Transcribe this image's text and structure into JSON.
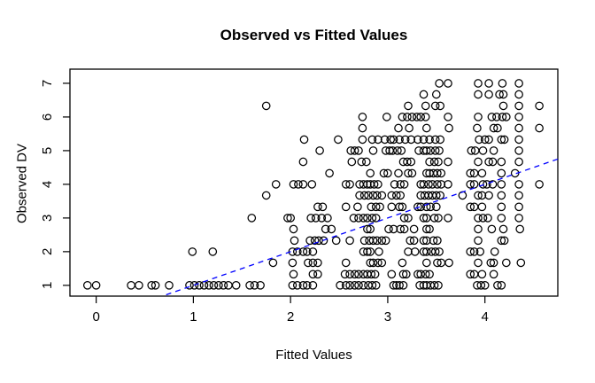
{
  "chart_data": {
    "type": "scatter",
    "title": "Observed vs Fitted Values",
    "xlabel": "Fitted Values",
    "ylabel": "Observed DV",
    "xlim": [
      -0.27,
      4.75
    ],
    "ylim": [
      0.68,
      7.42
    ],
    "xticks": [
      0,
      1,
      2,
      3,
      4
    ],
    "yticks": [
      1,
      2,
      3,
      4,
      5,
      6,
      7
    ],
    "grid": false,
    "marker": {
      "shape": "open-circle",
      "color": "#000000"
    },
    "frame_color": "#000000",
    "reference_line": {
      "style": "dashed",
      "color": "#0000FF",
      "slope": 1,
      "intercept": 0,
      "x_range": [
        0.72,
        4.75
      ]
    },
    "bands": [
      {
        "y": 1.0,
        "x": [
          -0.09,
          0.0,
          0.36,
          0.44,
          0.57,
          0.61,
          0.75,
          0.96,
          1.01,
          1.06,
          1.11,
          1.16,
          1.21,
          1.26,
          1.31,
          1.36,
          1.44,
          1.58,
          1.63,
          1.69,
          2.02,
          2.07,
          2.13,
          2.17,
          2.23,
          2.51,
          2.57,
          2.61,
          2.66,
          2.7,
          2.75,
          2.8,
          2.84,
          2.88,
          3.06,
          3.09,
          3.12,
          3.16,
          3.33,
          3.37,
          3.4,
          3.44,
          3.48,
          3.52,
          3.92,
          3.96,
          4.0,
          4.13,
          4.17
        ]
      },
      {
        "y": 1.33,
        "x": [
          2.03,
          2.23,
          2.28,
          2.56,
          2.61,
          2.66,
          2.7,
          2.75,
          2.79,
          2.83,
          2.87,
          3.04,
          3.16,
          3.19,
          3.31,
          3.34,
          3.39,
          3.43,
          3.85,
          3.89,
          3.97,
          4.09
        ]
      },
      {
        "y": 1.67,
        "x": [
          1.82,
          2.02,
          2.18,
          2.23,
          2.28,
          2.57,
          2.82,
          2.85,
          2.9,
          2.94,
          3.15,
          3.4,
          3.51,
          3.55,
          3.63,
          3.93,
          4.06,
          4.09,
          4.22,
          4.37
        ]
      },
      {
        "y": 2.0,
        "x": [
          0.99,
          1.2,
          2.02,
          2.07,
          2.13,
          2.17,
          2.23,
          2.75,
          2.79,
          2.82,
          2.91,
          3.21,
          3.28,
          3.37,
          3.4,
          3.45,
          3.49,
          3.53,
          3.85,
          3.89,
          3.95,
          4.1
        ]
      },
      {
        "y": 2.33,
        "x": [
          2.04,
          2.2,
          2.25,
          2.29,
          2.34,
          2.47,
          2.61,
          2.76,
          2.81,
          2.85,
          2.89,
          2.94,
          2.98,
          3.23,
          3.27,
          3.37,
          3.4,
          3.47,
          3.51,
          3.93,
          4.17,
          4.2
        ]
      },
      {
        "y": 2.67,
        "x": [
          2.03,
          2.36,
          2.42,
          2.79,
          2.82,
          3.01,
          3.06,
          3.13,
          3.17,
          3.27,
          3.4,
          3.43,
          3.93,
          4.07,
          4.19,
          4.36
        ]
      },
      {
        "y": 3.0,
        "x": [
          1.6,
          1.97,
          2.0,
          2.21,
          2.26,
          2.32,
          2.38,
          2.65,
          2.7,
          2.75,
          2.79,
          2.84,
          2.88,
          3.17,
          3.21,
          3.37,
          3.4,
          3.48,
          3.52,
          3.62,
          3.93,
          3.98,
          4.03,
          4.17,
          4.35
        ]
      },
      {
        "y": 3.33,
        "x": [
          2.28,
          2.33,
          2.57,
          2.69,
          2.83,
          2.88,
          2.92,
          3.04,
          3.12,
          3.15,
          3.31,
          3.34,
          3.4,
          3.44,
          3.5,
          3.85,
          3.89,
          3.97,
          4.17,
          4.35
        ]
      },
      {
        "y": 3.67,
        "x": [
          1.75,
          2.71,
          2.76,
          2.8,
          2.85,
          2.89,
          2.94,
          3.04,
          3.09,
          3.13,
          3.34,
          3.38,
          3.42,
          3.46,
          3.5,
          3.54,
          3.77,
          3.93,
          3.97,
          4.04,
          4.17,
          4.35
        ]
      },
      {
        "y": 4.0,
        "x": [
          1.85,
          2.03,
          2.08,
          2.13,
          2.22,
          2.57,
          2.61,
          2.71,
          2.75,
          2.79,
          2.82,
          2.86,
          2.9,
          3.07,
          3.13,
          3.17,
          3.34,
          3.37,
          3.42,
          3.46,
          3.51,
          3.55,
          3.62,
          3.85,
          3.89,
          3.98,
          4.02,
          4.08,
          4.17,
          4.35,
          4.56
        ]
      },
      {
        "y": 4.33,
        "x": [
          2.4,
          2.82,
          2.96,
          3.0,
          3.11,
          3.21,
          3.25,
          3.4,
          3.43,
          3.47,
          3.51,
          3.55,
          3.85,
          3.89,
          3.97,
          4.17,
          4.31
        ]
      },
      {
        "y": 4.67,
        "x": [
          2.13,
          2.63,
          2.73,
          2.78,
          3.16,
          3.2,
          3.24,
          3.43,
          3.48,
          3.52,
          3.62,
          3.93,
          4.04,
          4.08,
          4.17,
          4.35
        ]
      },
      {
        "y": 5.0,
        "x": [
          2.3,
          2.62,
          2.66,
          2.7,
          2.85,
          2.98,
          3.02,
          3.05,
          3.1,
          3.14,
          3.32,
          3.37,
          3.4,
          3.44,
          3.49,
          3.53,
          3.86,
          3.9,
          3.98,
          4.09,
          4.35
        ]
      },
      {
        "y": 5.33,
        "x": [
          2.14,
          2.49,
          2.74,
          2.84,
          2.9,
          2.97,
          3.03,
          3.06,
          3.12,
          3.18,
          3.24,
          3.31,
          3.37,
          3.43,
          3.49,
          3.54,
          3.94,
          4.0,
          4.04,
          4.17,
          4.2,
          4.35
        ]
      },
      {
        "y": 5.67,
        "x": [
          2.74,
          3.11,
          3.22,
          3.4,
          3.63,
          3.92,
          4.09,
          4.13,
          4.35,
          4.56
        ]
      },
      {
        "y": 6.0,
        "x": [
          2.74,
          2.99,
          3.15,
          3.2,
          3.25,
          3.3,
          3.34,
          3.39,
          3.62,
          3.93,
          4.07,
          4.12,
          4.18,
          4.22,
          4.35
        ]
      },
      {
        "y": 6.33,
        "x": [
          1.75,
          3.21,
          3.39,
          3.49,
          3.54,
          4.19,
          4.35,
          4.56
        ]
      },
      {
        "y": 6.67,
        "x": [
          3.37,
          3.5,
          3.93,
          4.04,
          4.15,
          4.19,
          4.35
        ]
      },
      {
        "y": 7.0,
        "x": [
          3.53,
          3.62,
          3.93,
          4.04,
          4.18,
          4.35
        ]
      }
    ]
  }
}
